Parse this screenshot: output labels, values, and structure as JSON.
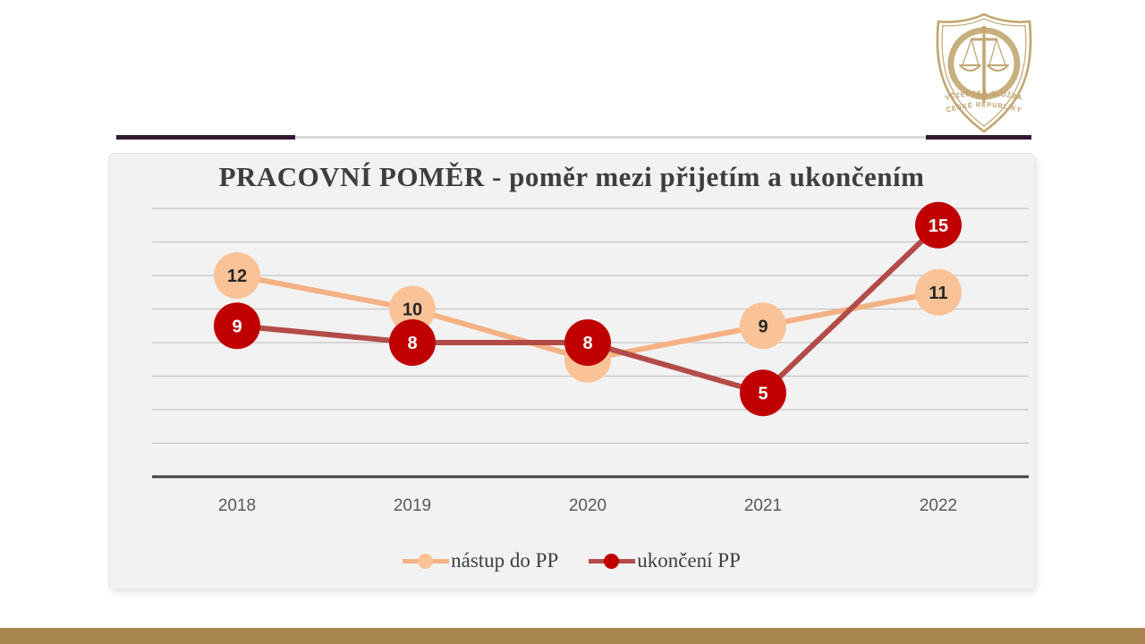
{
  "slide": {
    "accent_rule_color": "#321b32",
    "accent_rule_gray": "#d9d9d9",
    "bottom_bar_color": "#a9854f",
    "logo": {
      "color": "#bfa06a",
      "line1": "VĚZEŇSKÁ SLUŽBA",
      "line2": "ČESKÉ REPUBLIKY"
    }
  },
  "chart_data": {
    "type": "line",
    "title": "PRACOVNÍ POMĚR - poměr mezi přijetím a ukončením",
    "categories": [
      "2018",
      "2019",
      "2020",
      "2021",
      "2022"
    ],
    "series": [
      {
        "name": "nástup do PP",
        "values": [
          12,
          10,
          7,
          9,
          11
        ],
        "line_color": "#f4b183",
        "marker_color": "#fac397",
        "label_color": "#262626"
      },
      {
        "name": "ukončení PP",
        "values": [
          9,
          8,
          8,
          5,
          15
        ],
        "line_color": "#b34b48",
        "marker_color": "#c00000",
        "label_color": "#ffffff"
      }
    ],
    "ylim": [
      0,
      16
    ],
    "gridline_step": 2,
    "grid_on": true,
    "legend_position": "bottom",
    "xlabel": "",
    "ylabel": ""
  }
}
